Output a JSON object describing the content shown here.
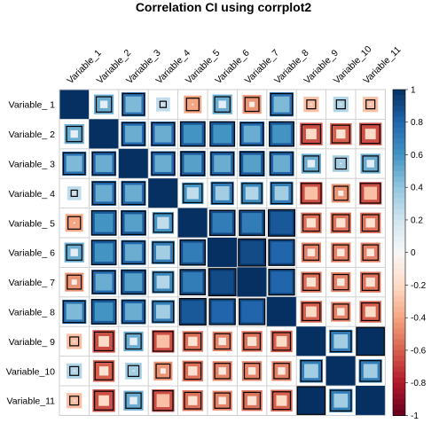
{
  "chart_data": {
    "type": "heatmap",
    "title": "Correlation CI using corrplot2",
    "row_labels": [
      "Variable_ 1",
      "Variable_ 2",
      "Variable_ 3",
      "Variable_ 4",
      "Variable_ 5",
      "Variable_ 6",
      "Variable_ 7",
      "Variable_ 8",
      "Variable_ 9",
      "Variable_10",
      "Variable_11"
    ],
    "col_labels": [
      "Variable_1",
      "Variable_2",
      "Variable_3",
      "Variable_4",
      "Variable_5",
      "Variable_6",
      "Variable_7",
      "Variable_8",
      "Variable_9",
      "Variable_10",
      "Variable_11"
    ],
    "color_scale": {
      "min": -1,
      "max": 1,
      "low_color": "#67001F",
      "mid_color": "#F7F7F7",
      "high_color": "#053061"
    },
    "colorbar_ticks": [
      "1",
      "0.8",
      "0.6",
      "0.4",
      "0.2",
      "0",
      "-0.2",
      "-0.4",
      "-0.6",
      "-0.8",
      "-1"
    ],
    "legend_position": "right",
    "correlation": [
      [
        1.0,
        0.3,
        0.6,
        0.05,
        -0.2,
        0.3,
        -0.25,
        0.6,
        -0.1,
        0.1,
        -0.1
      ],
      [
        0.3,
        1.0,
        0.65,
        0.65,
        0.75,
        0.75,
        0.65,
        0.75,
        -0.45,
        -0.4,
        -0.45
      ],
      [
        0.6,
        0.65,
        1.0,
        0.65,
        0.7,
        0.65,
        0.7,
        0.65,
        0.3,
        0.15,
        0.3
      ],
      [
        0.05,
        0.65,
        0.65,
        1.0,
        0.45,
        0.55,
        0.5,
        0.55,
        -0.5,
        -0.25,
        -0.5
      ],
      [
        -0.2,
        0.75,
        0.7,
        0.45,
        1.0,
        0.8,
        0.8,
        0.9,
        -0.35,
        -0.35,
        -0.35
      ],
      [
        0.3,
        0.75,
        0.65,
        0.55,
        0.8,
        1.0,
        0.95,
        0.85,
        -0.3,
        -0.3,
        -0.3
      ],
      [
        -0.25,
        0.65,
        0.7,
        0.5,
        0.8,
        0.95,
        1.0,
        0.85,
        -0.35,
        -0.3,
        -0.35
      ],
      [
        0.6,
        0.75,
        0.65,
        0.55,
        0.9,
        0.85,
        0.85,
        1.0,
        -0.4,
        -0.3,
        -0.4
      ],
      [
        -0.1,
        -0.45,
        0.3,
        -0.5,
        -0.35,
        -0.3,
        -0.35,
        -0.4,
        1.0,
        0.55,
        1.0
      ],
      [
        0.1,
        -0.4,
        0.15,
        -0.25,
        -0.35,
        -0.3,
        -0.3,
        -0.3,
        0.55,
        1.0,
        0.55
      ],
      [
        -0.1,
        -0.45,
        0.3,
        -0.5,
        -0.35,
        -0.3,
        -0.35,
        -0.4,
        1.0,
        0.55,
        1.0
      ]
    ],
    "ci_lower": [
      [
        1.0,
        0.1,
        0.45,
        -0.15,
        -0.4,
        0.1,
        -0.45,
        0.45,
        -0.3,
        -0.1,
        -0.3
      ],
      [
        0.1,
        1.0,
        0.5,
        0.5,
        0.6,
        0.6,
        0.5,
        0.6,
        -0.65,
        -0.6,
        -0.65
      ],
      [
        0.45,
        0.5,
        1.0,
        0.5,
        0.55,
        0.5,
        0.55,
        0.5,
        0.1,
        -0.05,
        0.1
      ],
      [
        -0.15,
        0.5,
        0.5,
        1.0,
        0.25,
        0.35,
        0.3,
        0.35,
        -0.65,
        -0.45,
        -0.65
      ],
      [
        -0.4,
        0.6,
        0.55,
        0.25,
        1.0,
        0.7,
        0.7,
        0.85,
        -0.55,
        -0.55,
        -0.55
      ],
      [
        0.1,
        0.6,
        0.5,
        0.35,
        0.7,
        1.0,
        0.9,
        0.8,
        -0.5,
        -0.5,
        -0.5
      ],
      [
        -0.45,
        0.5,
        0.55,
        0.3,
        0.7,
        0.9,
        1.0,
        0.8,
        -0.55,
        -0.5,
        -0.55
      ],
      [
        0.45,
        0.6,
        0.5,
        0.35,
        0.85,
        0.8,
        0.8,
        1.0,
        -0.6,
        -0.5,
        -0.6
      ],
      [
        -0.3,
        -0.65,
        0.1,
        -0.65,
        -0.55,
        -0.5,
        -0.55,
        -0.6,
        1.0,
        0.35,
        1.0
      ],
      [
        -0.1,
        -0.6,
        -0.05,
        -0.45,
        -0.55,
        -0.5,
        -0.5,
        -0.5,
        0.35,
        1.0,
        0.35
      ],
      [
        -0.3,
        -0.65,
        0.1,
        -0.65,
        -0.55,
        -0.5,
        -0.55,
        -0.6,
        1.0,
        0.35,
        1.0
      ]
    ],
    "ci_upper": [
      [
        1.0,
        0.5,
        0.75,
        0.25,
        0.0,
        0.5,
        -0.05,
        0.75,
        0.1,
        0.3,
        0.1
      ],
      [
        0.5,
        1.0,
        0.8,
        0.8,
        0.85,
        0.85,
        0.8,
        0.85,
        -0.2,
        -0.15,
        -0.2
      ],
      [
        0.75,
        0.8,
        1.0,
        0.8,
        0.85,
        0.8,
        0.85,
        0.8,
        0.5,
        0.35,
        0.5
      ],
      [
        0.25,
        0.8,
        0.8,
        1.0,
        0.6,
        0.7,
        0.65,
        0.7,
        -0.3,
        -0.05,
        -0.3
      ],
      [
        0.0,
        0.85,
        0.85,
        0.6,
        1.0,
        0.9,
        0.9,
        0.95,
        -0.15,
        -0.15,
        -0.15
      ],
      [
        0.5,
        0.85,
        0.8,
        0.7,
        0.9,
        1.0,
        0.98,
        0.92,
        -0.1,
        -0.1,
        -0.1
      ],
      [
        -0.05,
        0.8,
        0.85,
        0.65,
        0.9,
        0.98,
        1.0,
        0.92,
        -0.15,
        -0.1,
        -0.15
      ],
      [
        0.75,
        0.85,
        0.8,
        0.7,
        0.95,
        0.92,
        0.92,
        1.0,
        -0.2,
        -0.1,
        -0.2
      ],
      [
        0.1,
        -0.2,
        0.5,
        -0.3,
        -0.15,
        -0.1,
        -0.15,
        -0.2,
        1.0,
        0.7,
        1.0
      ],
      [
        0.3,
        -0.15,
        0.35,
        -0.05,
        -0.15,
        -0.1,
        -0.1,
        -0.1,
        0.7,
        1.0,
        0.7
      ],
      [
        0.1,
        -0.2,
        0.5,
        -0.3,
        -0.15,
        -0.1,
        -0.15,
        -0.2,
        1.0,
        0.7,
        1.0
      ]
    ]
  }
}
